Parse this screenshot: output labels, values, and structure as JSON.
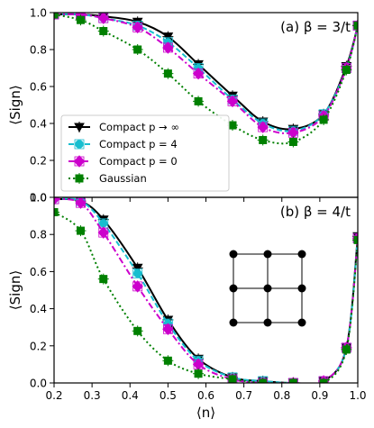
{
  "chart_data": [
    {
      "type": "line",
      "panel_label": "(a)",
      "title": "(a) β = 3/t",
      "xlabel": "⟨n⟩",
      "ylabel": "⟨Sign⟩",
      "xlim": [
        0.2,
        1.0
      ],
      "ylim": [
        0.0,
        1.0
      ],
      "xticks": [
        "0.2",
        "0.3",
        "0.4",
        "0.5",
        "0.6",
        "0.7",
        "0.8",
        "0.9",
        "1.0"
      ],
      "yticks": [
        "0.0",
        "0.2",
        "0.4",
        "0.6",
        "0.8",
        "1.0"
      ],
      "legend_position": "lower-left",
      "series": [
        {
          "name": "Compact p → ∞",
          "color": "#000000",
          "marker": "triangle-down",
          "linestyle": "solid",
          "x": [
            0.2,
            0.27,
            0.33,
            0.42,
            0.5,
            0.58,
            0.67,
            0.75,
            0.83,
            0.91,
            0.97,
            1.0
          ],
          "y": [
            0.99,
            0.99,
            0.98,
            0.95,
            0.87,
            0.72,
            0.55,
            0.41,
            0.37,
            0.45,
            0.71,
            0.93
          ]
        },
        {
          "name": "Compact p = 4",
          "color": "#17becf",
          "marker": "circle",
          "linestyle": "dash",
          "x": [
            0.2,
            0.27,
            0.33,
            0.42,
            0.5,
            0.58,
            0.67,
            0.75,
            0.83,
            0.91,
            0.97,
            1.0
          ],
          "y": [
            0.99,
            0.99,
            0.97,
            0.93,
            0.84,
            0.7,
            0.53,
            0.4,
            0.36,
            0.45,
            0.7,
            0.93
          ]
        },
        {
          "name": "Compact p = 0",
          "color": "#cc00cc",
          "marker": "diamond",
          "linestyle": "dashdot",
          "x": [
            0.2,
            0.27,
            0.33,
            0.42,
            0.5,
            0.58,
            0.67,
            0.75,
            0.83,
            0.91,
            0.97,
            1.0
          ],
          "y": [
            0.99,
            0.99,
            0.97,
            0.92,
            0.81,
            0.67,
            0.52,
            0.38,
            0.35,
            0.44,
            0.7,
            0.93
          ]
        },
        {
          "name": "Gaussian",
          "color": "#008000",
          "marker": "square",
          "linestyle": "dot",
          "x": [
            0.2,
            0.27,
            0.33,
            0.42,
            0.5,
            0.58,
            0.67,
            0.75,
            0.83,
            0.91,
            0.97,
            1.0
          ],
          "y": [
            0.99,
            0.96,
            0.9,
            0.8,
            0.67,
            0.52,
            0.39,
            0.31,
            0.3,
            0.42,
            0.69,
            0.93
          ]
        }
      ]
    },
    {
      "type": "line",
      "panel_label": "(b)",
      "title": "(b) β = 4/t",
      "xlabel": "⟨n⟩",
      "ylabel": "⟨Sign⟩",
      "xlim": [
        0.2,
        1.0
      ],
      "ylim": [
        0.0,
        1.0
      ],
      "xticks": [
        "0.2",
        "0.3",
        "0.4",
        "0.5",
        "0.6",
        "0.7",
        "0.8",
        "0.9",
        "1.0"
      ],
      "yticks": [
        "0.0",
        "0.2",
        "0.4",
        "0.6",
        "0.8",
        "1.0"
      ],
      "inset": "3x3 square lattice",
      "series": [
        {
          "name": "Compact p → ∞",
          "color": "#000000",
          "marker": "triangle-down",
          "linestyle": "solid",
          "x": [
            0.2,
            0.27,
            0.33,
            0.42,
            0.5,
            0.58,
            0.67,
            0.75,
            0.83,
            0.91,
            0.97,
            1.0
          ],
          "y": [
            0.99,
            0.98,
            0.88,
            0.62,
            0.34,
            0.13,
            0.03,
            0.01,
            0.0,
            0.01,
            0.19,
            0.79
          ]
        },
        {
          "name": "Compact p = 4",
          "color": "#17becf",
          "marker": "circle",
          "linestyle": "dash",
          "x": [
            0.2,
            0.27,
            0.33,
            0.42,
            0.5,
            0.58,
            0.67,
            0.75,
            0.83,
            0.91,
            0.97,
            1.0
          ],
          "y": [
            0.99,
            0.98,
            0.86,
            0.59,
            0.32,
            0.12,
            0.03,
            0.01,
            0.0,
            0.01,
            0.19,
            0.78
          ]
        },
        {
          "name": "Compact p = 0",
          "color": "#cc00cc",
          "marker": "diamond",
          "linestyle": "dashdot",
          "x": [
            0.2,
            0.27,
            0.33,
            0.42,
            0.5,
            0.58,
            0.67,
            0.75,
            0.83,
            0.91,
            0.97,
            1.0
          ],
          "y": [
            0.99,
            0.97,
            0.81,
            0.52,
            0.29,
            0.1,
            0.02,
            0.0,
            0.0,
            0.01,
            0.19,
            0.78
          ]
        },
        {
          "name": "Gaussian",
          "color": "#008000",
          "marker": "square",
          "linestyle": "dot",
          "x": [
            0.2,
            0.27,
            0.33,
            0.42,
            0.5,
            0.58,
            0.67,
            0.75,
            0.83,
            0.91,
            0.97,
            1.0
          ],
          "y": [
            0.92,
            0.82,
            0.56,
            0.28,
            0.12,
            0.05,
            0.02,
            0.0,
            0.0,
            0.0,
            0.18,
            0.77
          ]
        }
      ]
    }
  ]
}
